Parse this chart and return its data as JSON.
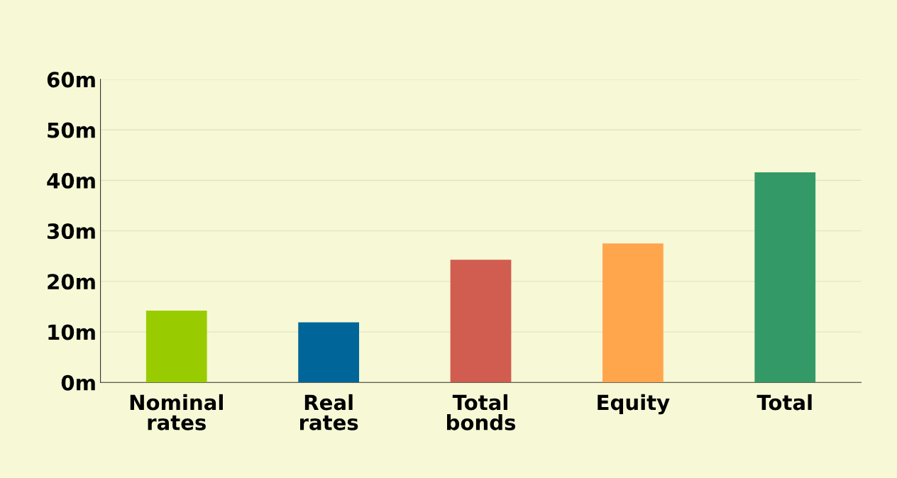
{
  "chart_data": {
    "type": "bar",
    "categories": [
      "Nominal\nrates",
      "Real\nrates",
      "Total\nbonds",
      "Equity",
      "Total"
    ],
    "values": [
      14.2,
      11.9,
      24.3,
      27.5,
      41.6
    ],
    "colors": [
      "#99cc00",
      "#006699",
      "#d05d50",
      "#ffa64d",
      "#339966"
    ],
    "ylim": [
      0,
      60
    ],
    "yticks": [
      {
        "value": 0,
        "label": "0m"
      },
      {
        "value": 10,
        "label": "10m"
      },
      {
        "value": 20,
        "label": "20m"
      },
      {
        "value": 30,
        "label": "30m"
      },
      {
        "value": 40,
        "label": "40m"
      },
      {
        "value": 50,
        "label": "50m"
      },
      {
        "value": 60,
        "label": "60m"
      }
    ],
    "grid": "y"
  }
}
